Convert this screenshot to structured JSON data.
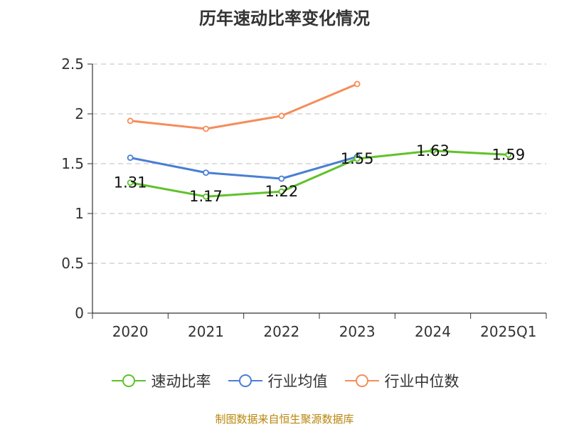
{
  "title": "历年速动比率变化情况",
  "source": "制图数据来自恒生聚源数据库",
  "chart_data": {
    "type": "line",
    "title": "历年速动比率变化情况",
    "xlabel": "",
    "ylabel": "",
    "categories": [
      "2020",
      "2021",
      "2022",
      "2023",
      "2024",
      "2025Q1"
    ],
    "yticks": [
      "0",
      "0.5",
      "1",
      "1.5",
      "2",
      "2.5"
    ],
    "ylim": [
      0,
      2.5
    ],
    "grid": true,
    "legend_position": "bottom-center",
    "series": [
      {
        "name": "速动比率",
        "color": "#5fc22a",
        "values": [
          1.31,
          1.17,
          1.22,
          1.55,
          1.63,
          1.59
        ],
        "labels": [
          "1.31",
          "1.17",
          "1.22",
          "1.55",
          "1.63",
          "1.59"
        ]
      },
      {
        "name": "行业均值",
        "color": "#4a7fd4",
        "values": [
          1.56,
          1.41,
          1.35,
          1.57,
          null,
          null
        ]
      },
      {
        "name": "行业中位数",
        "color": "#f58d5a",
        "values": [
          1.93,
          1.85,
          1.98,
          2.3,
          null,
          null
        ]
      }
    ]
  }
}
